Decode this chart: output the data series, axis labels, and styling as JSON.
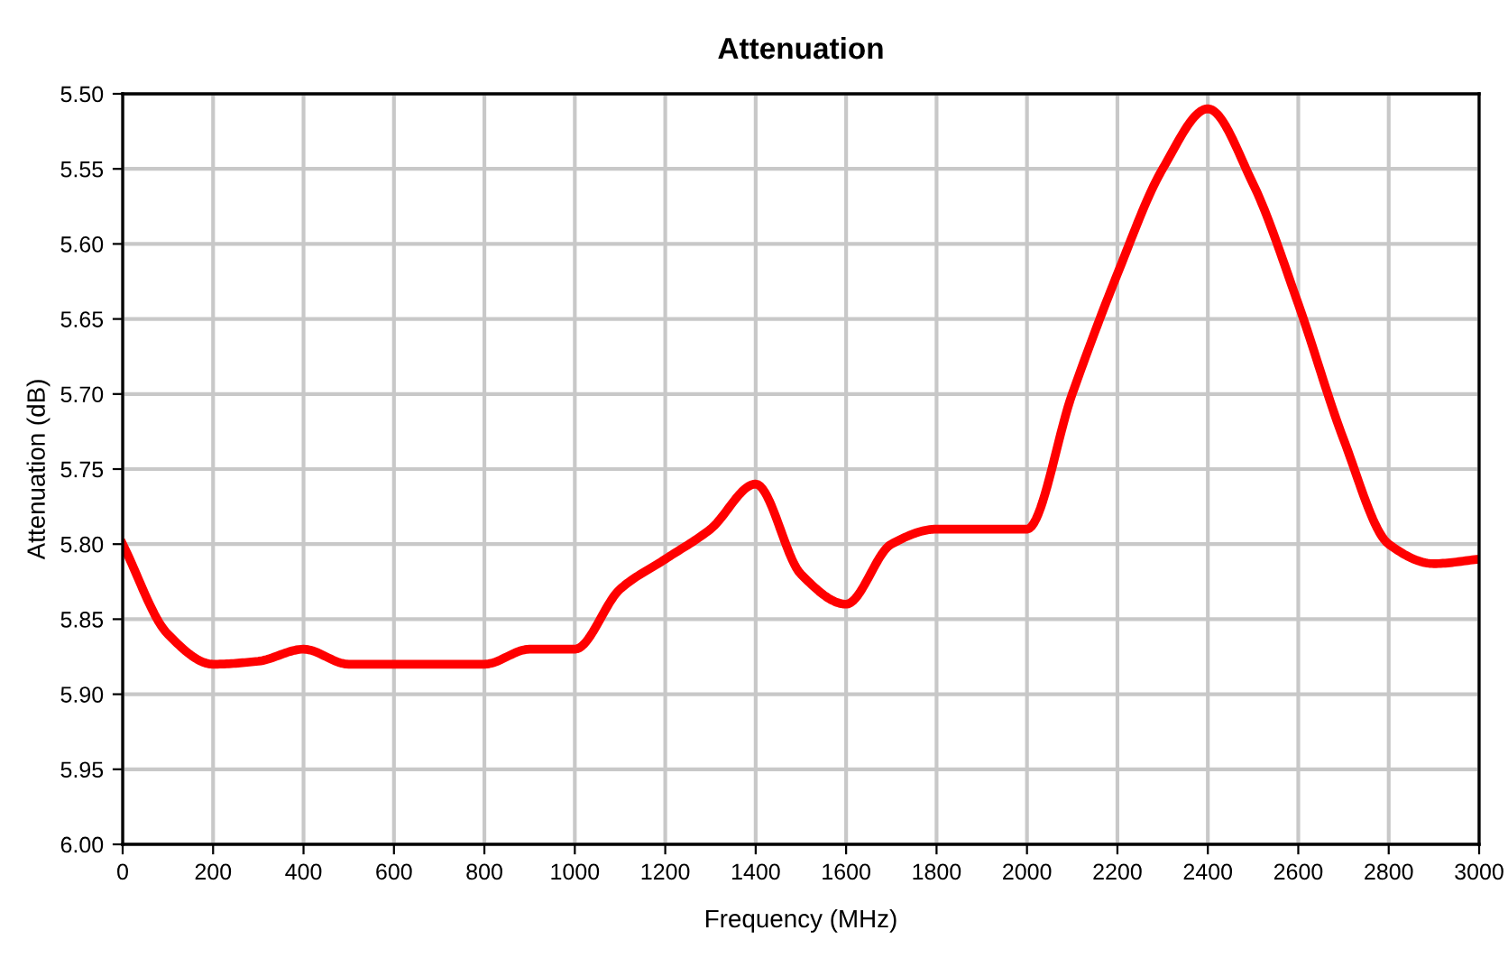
{
  "chart_data": {
    "type": "line",
    "title": "Attenuation",
    "xlabel": "Frequency (MHz)",
    "ylabel": "Attenuation (dB)",
    "x": [
      0,
      100,
      200,
      300,
      400,
      500,
      600,
      700,
      800,
      900,
      1000,
      1100,
      1200,
      1300,
      1400,
      1500,
      1600,
      1700,
      1800,
      1900,
      2000,
      2100,
      2200,
      2300,
      2400,
      2500,
      2600,
      2700,
      2800,
      2900,
      3000
    ],
    "series": [
      {
        "color": "#ff0000",
        "values": [
          5.8,
          5.86,
          5.88,
          5.878,
          5.87,
          5.88,
          5.88,
          5.88,
          5.88,
          5.87,
          5.87,
          5.83,
          5.81,
          5.79,
          5.76,
          5.82,
          5.84,
          5.8,
          5.79,
          5.79,
          5.79,
          5.7,
          5.62,
          5.55,
          5.51,
          5.56,
          5.64,
          5.73,
          5.8,
          5.813,
          5.81
        ]
      }
    ],
    "xlim": [
      0,
      3000
    ],
    "xticks": [
      0,
      200,
      400,
      600,
      800,
      1000,
      1200,
      1400,
      1600,
      1800,
      2000,
      2200,
      2400,
      2600,
      2800,
      3000
    ],
    "ylim": [
      6.0,
      5.5
    ],
    "yticks": [
      {
        "value": 5.5,
        "label": "5.50"
      },
      {
        "value": 5.55,
        "label": "5.55"
      },
      {
        "value": 5.6,
        "label": "5.60"
      },
      {
        "value": 5.65,
        "label": "5.65"
      },
      {
        "value": 5.7,
        "label": "5.70"
      },
      {
        "value": 5.75,
        "label": "5.75"
      },
      {
        "value": 5.8,
        "label": "5.80"
      },
      {
        "value": 5.85,
        "label": "5.85"
      },
      {
        "value": 5.9,
        "label": "5.90"
      },
      {
        "value": 5.95,
        "label": "5.95"
      },
      {
        "value": 6.0,
        "label": "6.00"
      }
    ],
    "grid": true,
    "marker": "none",
    "line_style": "solid"
  }
}
